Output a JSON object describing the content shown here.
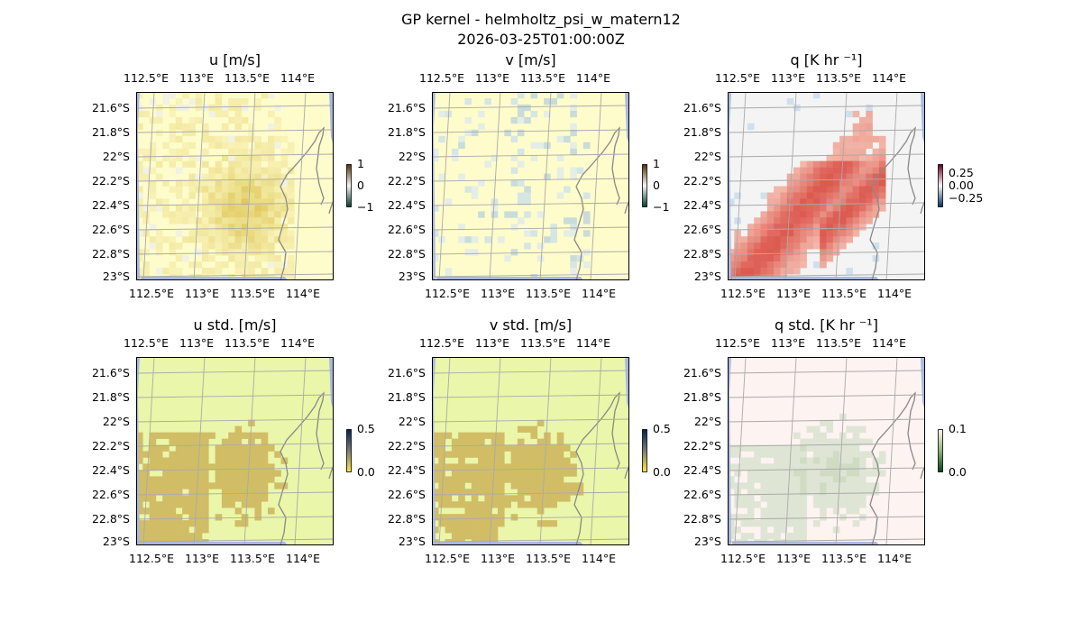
{
  "suptitle": "GP kernel - helmholtz_psi_w_matern12",
  "timestamp": "2026-03-25T01:00:00Z",
  "chart_data": {
    "type": "heatmap",
    "lon_ticks": [
      "112.5°E",
      "113°E",
      "113.5°E",
      "114°E"
    ],
    "lat_ticks": [
      "21.6°S",
      "21.8°S",
      "22°S",
      "22.2°S",
      "22.4°S",
      "22.6°S",
      "22.8°S",
      "23°S"
    ],
    "grid": true,
    "panels": [
      {
        "id": "u",
        "title": "u [m/s]",
        "cmap": "BrBG-like",
        "clim": [
          -1,
          1
        ],
        "cbar_ticks": [
          "1",
          "0",
          "−1"
        ]
      },
      {
        "id": "v",
        "title": "v [m/s]",
        "cmap": "BrBG-like",
        "clim": [
          -1,
          1
        ],
        "cbar_ticks": [
          "1",
          "0",
          "−1"
        ]
      },
      {
        "id": "q",
        "title": "q [K hr ⁻¹]",
        "cmap": "RdBu_r-like",
        "clim": [
          -0.4,
          0.4
        ],
        "cbar_ticks": [
          "0.25",
          "0.00",
          "−0.25"
        ]
      },
      {
        "id": "ustd",
        "title": "u std. [m/s]",
        "cmap": "cividis-like",
        "clim": [
          0,
          0.5
        ],
        "cbar_ticks": [
          "0.5",
          "0.0"
        ]
      },
      {
        "id": "vstd",
        "title": "v std. [m/s]",
        "cmap": "cividis-like",
        "clim": [
          0,
          0.5
        ],
        "cbar_ticks": [
          "0.5",
          "0.0"
        ]
      },
      {
        "id": "qstd",
        "title": "q std. [K hr ⁻¹]",
        "cmap": "pink-green-like",
        "clim": [
          0,
          0.1
        ],
        "cbar_ticks": [
          "0.1",
          "0.0"
        ]
      }
    ],
    "colors": {
      "ocean": "#a9b8e0",
      "coast": "#888888",
      "gridline": "#aaaaaa",
      "u_bg": "#fefccb",
      "v_bg": "#fefccb",
      "q_bg": "#f4f4f4",
      "std_bg": "#eaf6a9",
      "std_hi": "#d1bd65",
      "qstd_bg": "#fdf3f1",
      "qstd_hi": "#c9d8c0"
    }
  }
}
